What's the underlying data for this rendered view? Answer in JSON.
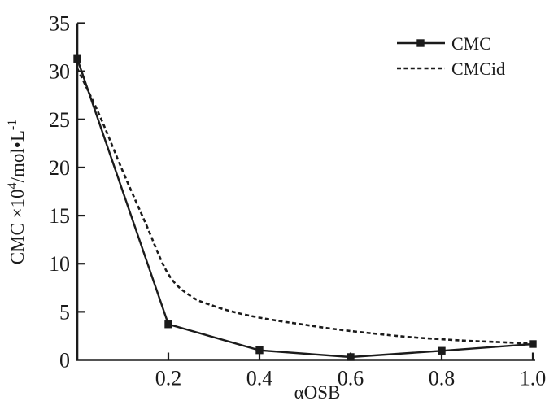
{
  "figure": {
    "background": "#ffffff",
    "ink": "#1b1b1b"
  },
  "chart_data": {
    "type": "line",
    "title": "",
    "xlabel": "αOSB",
    "ylabel": "CMC ×10⁴/mol•L⁻¹",
    "ylabel_parts": {
      "base1": "CMC ×10",
      "sup1": "4",
      "base2": "/mol•L",
      "sup2": "-1"
    },
    "xlim": [
      0,
      1.0
    ],
    "ylim": [
      0,
      35
    ],
    "grid": false,
    "x_ticks": [
      {
        "v": 0.2,
        "label": "0.2"
      },
      {
        "v": 0.4,
        "label": "0.4"
      },
      {
        "v": 0.6,
        "label": "0.6"
      },
      {
        "v": 0.8,
        "label": "0.8"
      },
      {
        "v": 1.0,
        "label": "1.0"
      }
    ],
    "y_ticks": [
      {
        "v": 0,
        "label": "0"
      },
      {
        "v": 5,
        "label": "5"
      },
      {
        "v": 10,
        "label": "10"
      },
      {
        "v": 15,
        "label": "15"
      },
      {
        "v": 20,
        "label": "20"
      },
      {
        "v": 25,
        "label": "25"
      },
      {
        "v": 30,
        "label": "30"
      },
      {
        "v": 35,
        "label": "35"
      }
    ],
    "legend": {
      "position": "upper-right",
      "items": [
        "CMC",
        "CMCid"
      ]
    },
    "series": [
      {
        "name": "CMC",
        "style": "solid",
        "marker": "filled-square",
        "smooth": false,
        "x": [
          0,
          0.2,
          0.4,
          0.6,
          0.8,
          1.0
        ],
        "y": [
          31.3,
          3.7,
          1.0,
          0.3,
          0.95,
          1.65
        ]
      },
      {
        "name": "CMCid",
        "style": "dashed",
        "marker": "none",
        "smooth": true,
        "x": [
          0,
          0.05,
          0.1,
          0.15,
          0.2,
          0.25,
          0.3,
          0.35,
          0.4,
          0.45,
          0.5,
          0.55,
          0.6,
          0.65,
          0.7,
          0.75,
          0.8,
          0.85,
          0.9,
          0.95,
          1.0
        ],
        "y": [
          30.3,
          25.3,
          19.6,
          14.2,
          8.9,
          6.6,
          5.6,
          4.9,
          4.4,
          4.0,
          3.65,
          3.3,
          3.0,
          2.75,
          2.5,
          2.3,
          2.15,
          2.0,
          1.9,
          1.8,
          1.7
        ]
      }
    ]
  }
}
